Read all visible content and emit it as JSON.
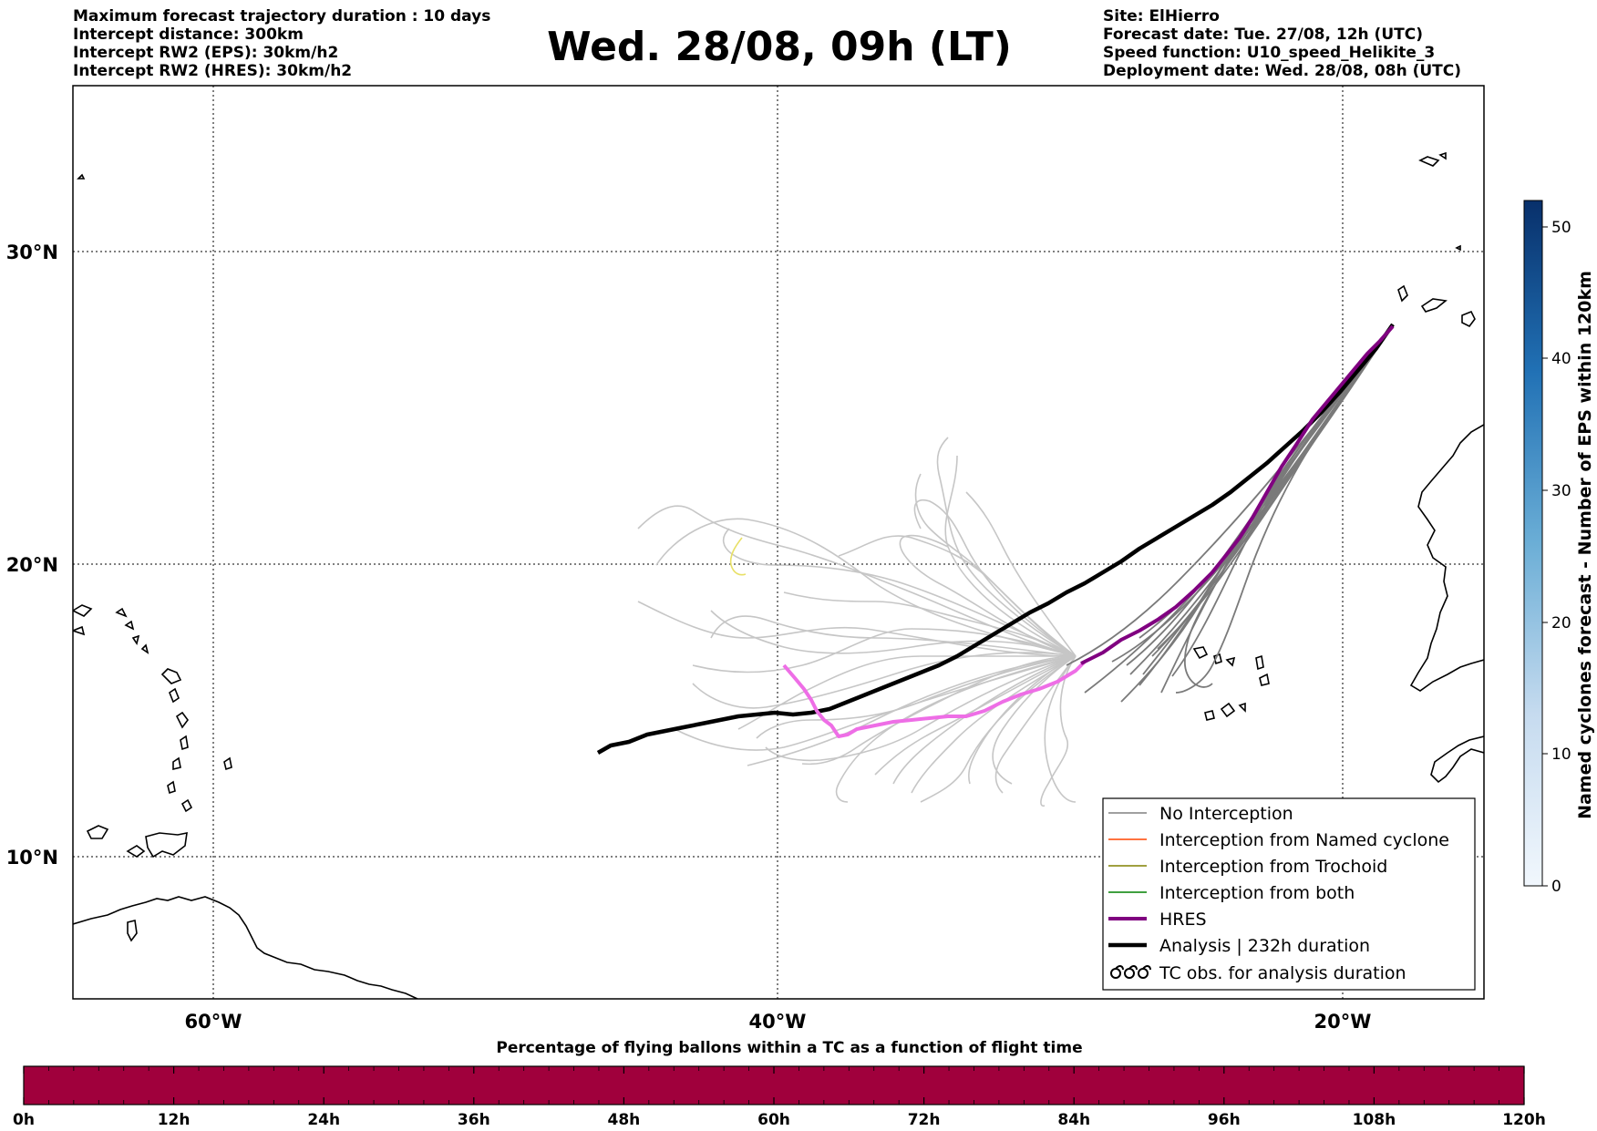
{
  "header": {
    "title": "Wed. 28/08, 09h (LT)",
    "left_lines": [
      "Maximum forecast trajectory duration : 10 days",
      "Intercept distance: 300km",
      "Intercept RW2 (EPS):  30km/h2",
      "Intercept RW2 (HRES): 30km/h2"
    ],
    "right_lines": [
      "Site: ElHierro",
      "Forecast date: Tue. 27/08, 12h (UTC)",
      "Speed function: U10_speed_Helikite_3",
      "Deployment date: Wed. 28/08, 08h (UTC)"
    ]
  },
  "map": {
    "lat_labels": [
      "30°N",
      "20°N",
      "10°N"
    ],
    "lon_labels": [
      "60°W",
      "40°W",
      "20°W"
    ],
    "grid": true
  },
  "legend": {
    "items": [
      {
        "label": "No Interception",
        "color": "#808080"
      },
      {
        "label": "Interception from Named cyclone",
        "color": "#ff4500"
      },
      {
        "label": "Interception from Trochoid",
        "color": "#808000"
      },
      {
        "label": "Interception from both",
        "color": "#008000"
      },
      {
        "label": "HRES",
        "color": "#800080"
      },
      {
        "label": "Analysis | 232h duration",
        "color": "#000000"
      },
      {
        "label": "TC obs. for analysis duration",
        "color": "#000000"
      }
    ]
  },
  "colorbar": {
    "label": "Named cyclones forecast - Number of EPS within 120km",
    "ticks": [
      "0",
      "10",
      "20",
      "30",
      "40",
      "50"
    ],
    "range": [
      0,
      52
    ]
  },
  "time_bar": {
    "title": "Percentage of flying ballons within a TC as a function of flight time",
    "ticks": [
      "0h",
      "12h",
      "24h",
      "36h",
      "48h",
      "60h",
      "72h",
      "84h",
      "96h",
      "108h",
      "120h"
    ],
    "fill_color": "#a0003c"
  }
}
